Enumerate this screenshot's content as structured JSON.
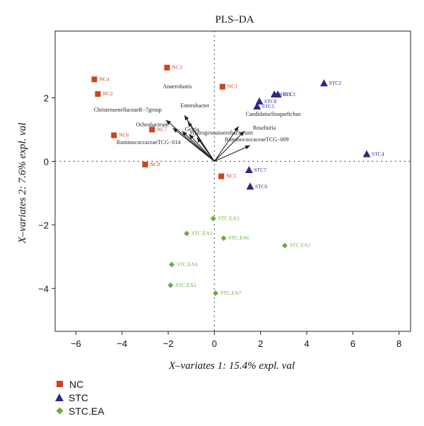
{
  "chart_data": {
    "type": "scatter",
    "title": "PLS–DA",
    "xlabel": "X–variates 1: 15.4% expl. val",
    "ylabel": "X–variates 2: 7.6% expl. val",
    "xlim": [
      -6.9,
      8.5
    ],
    "ylim": [
      -5.35,
      4.1
    ],
    "xticks": [
      "−6",
      "−4",
      "−2",
      "0",
      "2",
      "4",
      "6",
      "8"
    ],
    "xtick_values": [
      -6,
      -4,
      -2,
      0,
      2,
      4,
      6,
      8
    ],
    "yticks": [
      "−4",
      "−2",
      "0",
      "2"
    ],
    "ytick_values": [
      -4,
      -2,
      0,
      2
    ],
    "reference_lines": {
      "x": 0,
      "y": 0,
      "style": "dotted"
    },
    "series": [
      {
        "name": "NC",
        "color": "#d0421b",
        "marker": "square",
        "points": [
          {
            "label": "NC1",
            "x": 0.35,
            "y": 2.35
          },
          {
            "label": "NC2",
            "x": -5.05,
            "y": 2.12
          },
          {
            "label": "NC3",
            "x": -2.05,
            "y": 2.95
          },
          {
            "label": "NC4",
            "x": -5.2,
            "y": 2.58
          },
          {
            "label": "NC5",
            "x": 0.3,
            "y": -0.47
          },
          {
            "label": "NC6",
            "x": -4.35,
            "y": 0.82
          },
          {
            "label": "NC7",
            "x": -2.7,
            "y": 1.0
          },
          {
            "label": "NC8",
            "x": -3.0,
            "y": -0.1
          }
        ]
      },
      {
        "name": "STC",
        "color": "#2b2a8c",
        "marker": "triangle",
        "points": [
          {
            "label": "STC1",
            "x": 2.6,
            "y": 2.1
          },
          {
            "label": "STC2",
            "x": 4.75,
            "y": 2.45
          },
          {
            "label": "STC3",
            "x": 2.75,
            "y": 2.1
          },
          {
            "label": "STC4",
            "x": 6.6,
            "y": 0.22
          },
          {
            "label": "STC5",
            "x": 1.85,
            "y": 1.72
          },
          {
            "label": "STC6",
            "x": 1.55,
            "y": -0.8
          },
          {
            "label": "STC7",
            "x": 1.5,
            "y": -0.28
          },
          {
            "label": "STC8",
            "x": 1.95,
            "y": 1.88
          }
        ]
      },
      {
        "name": "STC.EA",
        "color": "#6aad3f",
        "marker": "diamond",
        "points": [
          {
            "label": "STC.EA1",
            "x": -1.2,
            "y": -2.27
          },
          {
            "label": "STC.EA2",
            "x": 3.05,
            "y": -2.65
          },
          {
            "label": "STC.EA3",
            "x": -0.05,
            "y": -1.8
          },
          {
            "label": "STC.EA4",
            "x": -1.85,
            "y": -3.25
          },
          {
            "label": "STC.EA5",
            "x": -1.9,
            "y": -3.9
          },
          {
            "label": "STC.EA6",
            "x": 0.4,
            "y": -2.42
          },
          {
            "label": "STC.EA7",
            "x": 0.05,
            "y": -4.15
          }
        ]
      }
    ],
    "loadings": [
      {
        "label": "Anaerofustis",
        "x": -1.3,
        "y": 1.45
      },
      {
        "label": "Enterobacter",
        "x": -1.15,
        "y": 1.25
      },
      {
        "label": "ChristensenellaceaeR−7group",
        "x": -2.1,
        "y": 1.3
      },
      {
        "label": "Ochrobactrum",
        "x": -1.8,
        "y": 1.05
      },
      {
        "label": "Gelria",
        "x": -1.4,
        "y": 0.95
      },
      {
        "label": "RuminococcaceaeTCG−014",
        "x": -1.1,
        "y": 0.85
      },
      {
        "label": "Hydrogenoanaerobacterium",
        "x": -0.75,
        "y": 0.75
      },
      {
        "label": "CandidatusStoquefichus",
        "x": 1.05,
        "y": 1.1
      },
      {
        "label": "Roseburia",
        "x": 1.3,
        "y": 0.95
      },
      {
        "label": "RuminococcaceaeTCG−009",
        "x": 1.55,
        "y": 0.5
      }
    ],
    "legend": {
      "position": "bottom-left"
    }
  }
}
